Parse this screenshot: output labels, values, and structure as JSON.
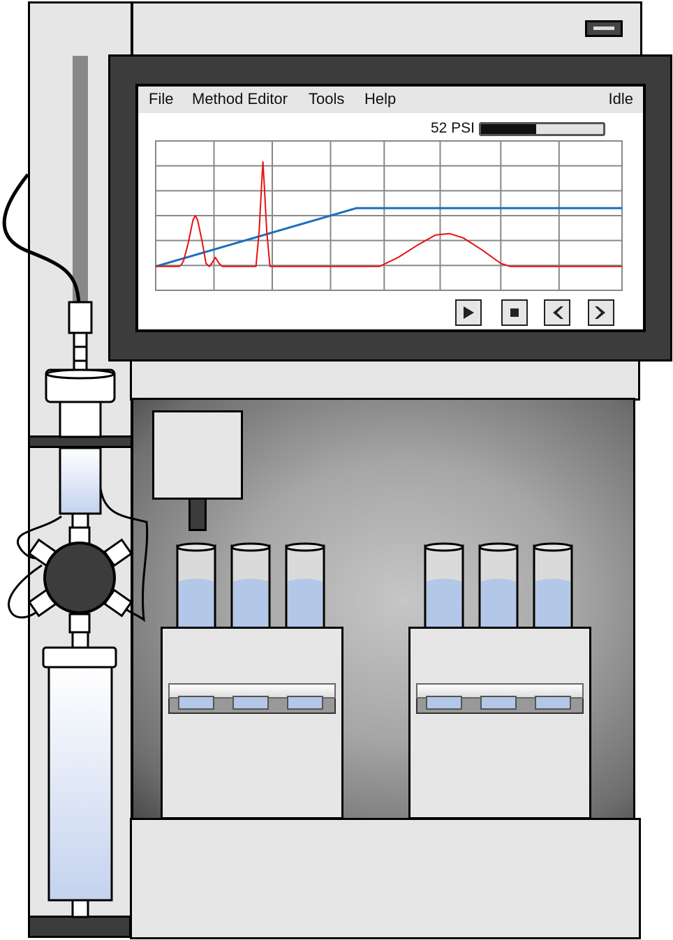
{
  "menu": {
    "items": [
      {
        "id": "file",
        "label": "File"
      },
      {
        "id": "method-editor",
        "label": "Method Editor"
      },
      {
        "id": "tools",
        "label": "Tools"
      },
      {
        "id": "help",
        "label": "Help"
      }
    ],
    "status": "Idle"
  },
  "pressure": {
    "label": "52 PSI",
    "level": 0.45
  },
  "controls": [
    {
      "id": "play",
      "icon": "play-icon"
    },
    {
      "id": "stop",
      "icon": "stop-icon"
    },
    {
      "id": "previous",
      "icon": "chevron-left-icon"
    },
    {
      "id": "next",
      "icon": "chevron-right-icon"
    }
  ],
  "chart_data": {
    "type": "line",
    "grid": true,
    "xlim": [
      0,
      100
    ],
    "ylim": [
      0,
      100
    ],
    "series": [
      {
        "color": "#1a6fbf",
        "points": [
          [
            0,
            16
          ],
          [
            43,
            55
          ],
          [
            100,
            55
          ]
        ]
      },
      {
        "color": "#e81010",
        "points": [
          [
            0,
            16
          ],
          [
            3,
            16
          ],
          [
            5,
            16
          ],
          [
            5.5,
            17
          ],
          [
            6,
            20
          ],
          [
            7,
            32
          ],
          [
            8,
            47
          ],
          [
            8.5,
            50
          ],
          [
            9,
            47
          ],
          [
            10,
            32
          ],
          [
            10.8,
            18
          ],
          [
            11.5,
            16
          ],
          [
            12,
            18
          ],
          [
            12.8,
            22
          ],
          [
            13.6,
            18
          ],
          [
            14.3,
            16
          ],
          [
            20,
            16
          ],
          [
            21.5,
            16
          ],
          [
            22.2,
            40
          ],
          [
            22.7,
            70
          ],
          [
            23,
            86
          ],
          [
            23.3,
            70
          ],
          [
            23.8,
            40
          ],
          [
            24.5,
            16
          ],
          [
            45,
            16
          ],
          [
            48,
            16
          ],
          [
            52,
            22
          ],
          [
            56,
            30
          ],
          [
            60,
            37
          ],
          [
            63,
            38
          ],
          [
            66,
            35
          ],
          [
            70,
            27
          ],
          [
            74,
            18
          ],
          [
            76,
            16
          ],
          [
            100,
            16
          ]
        ]
      }
    ]
  },
  "racks": [
    {
      "id": "left",
      "tubes": 3,
      "fill": 0.6
    },
    {
      "id": "right",
      "tubes": 3,
      "fill": 0.6
    }
  ],
  "colors": {
    "panel": "#e6e6e6",
    "bezel": "#3c3c3c",
    "liquid": "#b3c7e8",
    "gradient_line": "#1a6fbf",
    "trace_line": "#e81010"
  }
}
